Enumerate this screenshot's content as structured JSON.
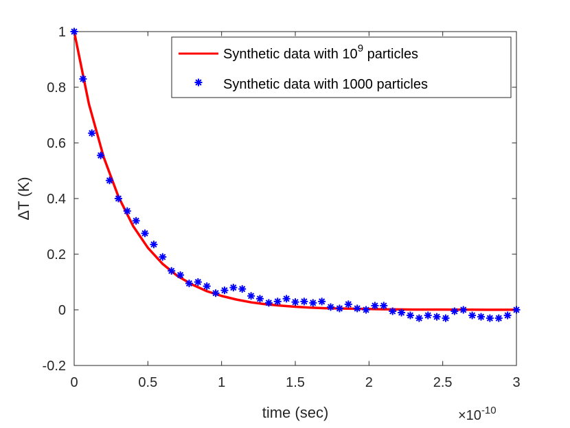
{
  "chart_data": {
    "type": "line",
    "title": "",
    "xlabel": "time (sec)",
    "ylabel": "ΔT (K)",
    "x_exponent_label": {
      "prefix": "×10",
      "exponent": "-10"
    },
    "xlim": [
      0,
      3
    ],
    "ylim": [
      -0.2,
      1
    ],
    "x_ticks": [
      0,
      0.5,
      1,
      1.5,
      2,
      2.5,
      3
    ],
    "x_tick_labels": [
      "0",
      "0.5",
      "1",
      "1.5",
      "2",
      "2.5",
      "3"
    ],
    "y_ticks": [
      -0.2,
      0,
      0.2,
      0.4,
      0.6,
      0.8,
      1
    ],
    "y_tick_labels": [
      "-0.2",
      "0",
      "0.2",
      "0.4",
      "0.6",
      "0.8",
      "1"
    ],
    "grid": false,
    "legend_position": "top-right",
    "series": [
      {
        "name_prefix": "Synthetic data with 10",
        "name_superscript": "9",
        "name_suffix": " particles",
        "style": "line",
        "color": "#ff0000",
        "x": [
          0,
          0.1,
          0.2,
          0.3,
          0.4,
          0.5,
          0.6,
          0.7,
          0.8,
          0.9,
          1.0,
          1.1,
          1.2,
          1.3,
          1.4,
          1.5,
          1.6,
          1.7,
          1.8,
          1.9,
          2.0,
          2.1,
          2.2,
          2.3,
          2.4,
          2.5,
          2.6,
          2.7,
          2.8,
          2.9,
          3.0
        ],
        "y": [
          1.0,
          0.74,
          0.549,
          0.407,
          0.301,
          0.223,
          0.165,
          0.122,
          0.091,
          0.067,
          0.05,
          0.037,
          0.027,
          0.02,
          0.015,
          0.011,
          0.008,
          0.006,
          0.005,
          0.004,
          0.003,
          0.002,
          0.0015,
          0.001,
          0.001,
          0.0008,
          0.0006,
          0.0005,
          0.0004,
          0.0003,
          0.0002
        ]
      },
      {
        "name": "Synthetic data with 1000 particles",
        "style": "markers",
        "marker": "asterisk",
        "color": "#0000ff",
        "x": [
          0,
          0.06,
          0.12,
          0.18,
          0.24,
          0.3,
          0.36,
          0.42,
          0.48,
          0.54,
          0.6,
          0.66,
          0.72,
          0.78,
          0.84,
          0.9,
          0.96,
          1.02,
          1.08,
          1.14,
          1.2,
          1.26,
          1.32,
          1.38,
          1.44,
          1.5,
          1.56,
          1.62,
          1.68,
          1.74,
          1.8,
          1.86,
          1.92,
          1.98,
          2.04,
          2.1,
          2.16,
          2.22,
          2.28,
          2.34,
          2.4,
          2.46,
          2.52,
          2.58,
          2.64,
          2.7,
          2.76,
          2.82,
          2.88,
          2.94,
          3.0
        ],
        "y": [
          1.0,
          0.83,
          0.635,
          0.555,
          0.465,
          0.4,
          0.355,
          0.32,
          0.275,
          0.235,
          0.19,
          0.14,
          0.125,
          0.095,
          0.1,
          0.085,
          0.06,
          0.07,
          0.08,
          0.075,
          0.05,
          0.04,
          0.025,
          0.03,
          0.04,
          0.028,
          0.03,
          0.025,
          0.03,
          0.01,
          0.005,
          0.02,
          0.005,
          0.0,
          0.015,
          0.015,
          -0.005,
          -0.01,
          -0.02,
          -0.03,
          -0.02,
          -0.025,
          -0.03,
          -0.005,
          0.0,
          -0.02,
          -0.025,
          -0.03,
          -0.03,
          -0.02,
          0.0
        ]
      }
    ]
  }
}
